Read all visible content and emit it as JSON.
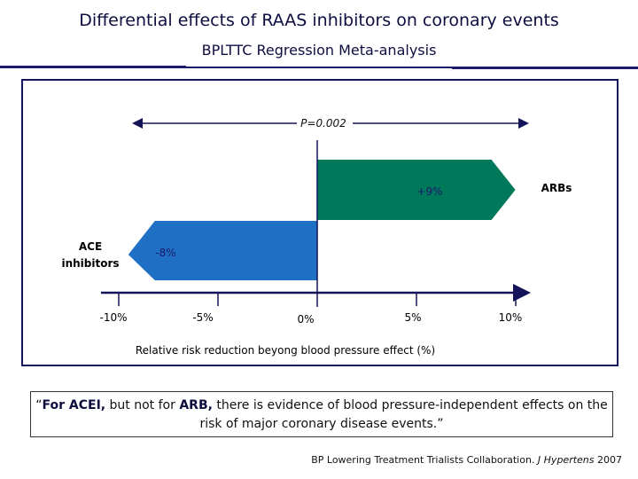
{
  "header": {
    "title": "Differential effects of RAAS inhibitors on coronary events",
    "subtitle": "BPLTTC Regression Meta-analysis"
  },
  "chart_data": {
    "type": "bar",
    "orientation": "horizontal",
    "categories": [
      "ARBs",
      "ACE inhibitors"
    ],
    "category_labels": {
      "arbs": "ARBs",
      "ace_line1": "ACE",
      "ace_line2": "inhibitors"
    },
    "values": [
      9,
      -8
    ],
    "data_labels": [
      "+9%",
      "-8%"
    ],
    "colors": [
      "#00785a",
      "#1f6fc4"
    ],
    "xlabel": "Relative risk reduction beyong blood pressure effect (%)",
    "xlim": [
      -10,
      10
    ],
    "xticks": [
      -10,
      -5,
      0,
      5,
      10
    ],
    "xtick_labels": [
      "-10%",
      "-5%",
      "0%",
      "5%",
      "10%"
    ],
    "annotation": "P=0.002",
    "grid": false
  },
  "quote": {
    "open": "“",
    "bold1": "For ACEI,",
    "t1": " but not for ",
    "bold2": "ARB,",
    "t2": " there is evidence of blood pressure-independent effects on the risk of major coronary disease events.",
    "close": "”"
  },
  "citation": {
    "authors": "BP Lowering Treatment Trialists Collaboration. ",
    "journal": "J Hypertens",
    "year": " 2007"
  }
}
